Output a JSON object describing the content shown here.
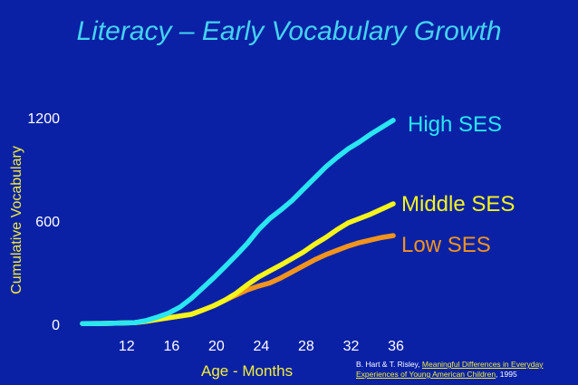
{
  "chart_data": {
    "type": "line",
    "title": "Literacy – Early Vocabulary Growth",
    "xlabel": "Age - Months",
    "ylabel": "Cumulative Vocabulary",
    "x_ticks": [
      "12",
      "16",
      "20",
      "24",
      "28",
      "32",
      "36"
    ],
    "y_ticks": [
      "0",
      "600",
      "1200"
    ],
    "xlim": [
      8.3,
      36
    ],
    "ylim": [
      0,
      1200
    ],
    "series": [
      {
        "name": "High SES",
        "color": "#29e6f1",
        "x": [
          8.3,
          10,
          12,
          13,
          14,
          15,
          16,
          17,
          18,
          19,
          20,
          21,
          22,
          23,
          24,
          25,
          26,
          27,
          28,
          29,
          30,
          31,
          32,
          33,
          34,
          35,
          36
        ],
        "y": [
          4,
          5,
          8,
          10,
          22,
          42,
          65,
          100,
          150,
          210,
          270,
          335,
          400,
          470,
          550,
          615,
          665,
          720,
          785,
          850,
          915,
          970,
          1020,
          1060,
          1105,
          1145,
          1185
        ]
      },
      {
        "name": "Middle SES",
        "color": "#f5f51b",
        "x": [
          8.3,
          10,
          12,
          13,
          14,
          15,
          16,
          17,
          18,
          19,
          20,
          21,
          22,
          23,
          24,
          25,
          26,
          27,
          28,
          29,
          30,
          31,
          32,
          33,
          34,
          35,
          36
        ],
        "y": [
          4,
          5,
          8,
          10,
          18,
          28,
          38,
          48,
          58,
          82,
          108,
          140,
          180,
          230,
          275,
          310,
          345,
          382,
          420,
          465,
          505,
          550,
          590,
          615,
          640,
          670,
          700
        ]
      },
      {
        "name": "Low SES",
        "color": "#f1941d",
        "x": [
          8.3,
          10,
          12,
          13,
          14,
          15,
          16,
          17,
          18,
          19,
          20,
          21,
          22,
          23,
          24,
          25,
          26,
          27,
          28,
          29,
          30,
          31,
          32,
          33,
          34,
          35,
          36
        ],
        "y": [
          4,
          5,
          8,
          10,
          18,
          28,
          38,
          48,
          58,
          82,
          108,
          140,
          170,
          200,
          222,
          240,
          270,
          305,
          340,
          375,
          405,
          430,
          455,
          475,
          490,
          505,
          515
        ]
      }
    ]
  },
  "citation": {
    "prefix": "B. Hart & T. Risley, ",
    "work": "Meaningful Differences in Everyday Experiences of Young American Children",
    "suffix": ", 1995"
  }
}
